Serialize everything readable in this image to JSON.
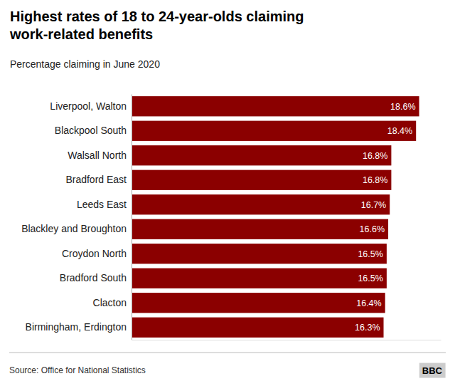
{
  "chart_data": {
    "type": "bar",
    "orientation": "horizontal",
    "title": "Highest rates of 18 to 24-year-olds claiming\nwork-related benefits",
    "subtitle": "Percentage claiming in June 2020",
    "source": "Source: Office for National Statistics",
    "annotations": [
      "BBC"
    ],
    "categories": [
      "Birmingham, Erdington",
      "Clacton",
      "Bradford South",
      "Croydon North",
      "Blackley and Broughton",
      "Leeds East",
      "Bradford East",
      "Walsall North",
      "Blackpool South",
      "Liverpool, Walton"
    ],
    "values": [
      16.3,
      16.4,
      16.5,
      16.5,
      16.6,
      16.7,
      16.8,
      16.8,
      18.4,
      18.6
    ],
    "value_labels": [
      "16.3%",
      "16.4%",
      "16.5%",
      "16.5%",
      "16.6%",
      "16.7%",
      "16.8%",
      "16.8%",
      "18.4%",
      "18.6%"
    ],
    "data_labels": true,
    "color": "#8b0000",
    "xlim": [
      0,
      20
    ],
    "grid": false,
    "tick_labels": "y"
  }
}
